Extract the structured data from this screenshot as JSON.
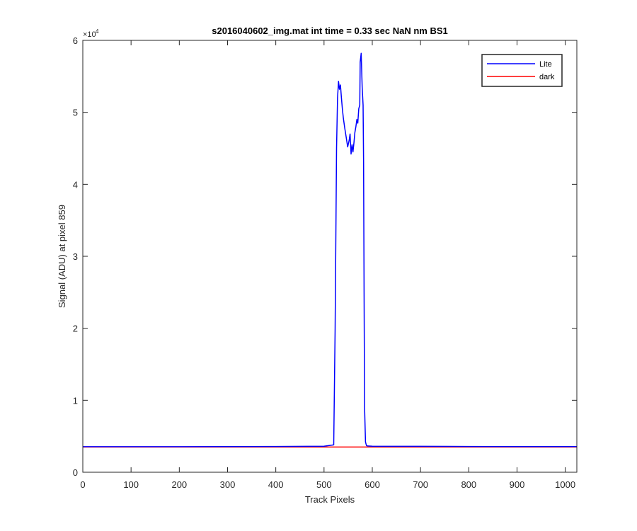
{
  "chart_data": {
    "type": "line",
    "title": "s2016040602_img.mat int time = 0.33 sec  NaN nm BS1",
    "xlabel": "Track Pixels",
    "ylabel": "Signal (ADU) at pixel 859",
    "xlim": [
      0,
      1024
    ],
    "ylim": [
      0,
      60000
    ],
    "x_ticks": [
      0,
      100,
      200,
      300,
      400,
      500,
      600,
      700,
      800,
      900,
      1000
    ],
    "y_ticks": [
      0,
      10000,
      20000,
      30000,
      40000,
      50000,
      60000
    ],
    "y_tick_labels": [
      "0",
      "1",
      "2",
      "3",
      "4",
      "5",
      "6"
    ],
    "y_exponent_label": "×10",
    "y_exponent_power": "4",
    "grid": false,
    "legend_position": "top-right",
    "series": [
      {
        "name": "Lite",
        "color": "#0000ff",
        "x": [
          0,
          100,
          200,
          300,
          400,
          500,
          520,
          523,
          526,
          528,
          530,
          532,
          534,
          536,
          538,
          540,
          543,
          546,
          549,
          552,
          554,
          556,
          558,
          560,
          562,
          564,
          566,
          568,
          570,
          572,
          574,
          575,
          577,
          579,
          581,
          582,
          583,
          584,
          586,
          588,
          590,
          600,
          700,
          800,
          900,
          1024
        ],
        "y": [
          3550,
          3550,
          3550,
          3560,
          3580,
          3620,
          3800,
          20000,
          45000,
          52000,
          54300,
          53200,
          53800,
          52000,
          50500,
          49200,
          47800,
          46500,
          45200,
          46100,
          47000,
          44200,
          45500,
          44500,
          45800,
          47200,
          48000,
          49000,
          48500,
          50500,
          51000,
          57000,
          58200,
          53500,
          51000,
          43000,
          25000,
          9000,
          4200,
          3700,
          3650,
          3620,
          3600,
          3580,
          3570,
          3560
        ]
      },
      {
        "name": "dark",
        "color": "#ff0000",
        "x": [
          0,
          1024
        ],
        "y": [
          3500,
          3500
        ]
      }
    ]
  }
}
